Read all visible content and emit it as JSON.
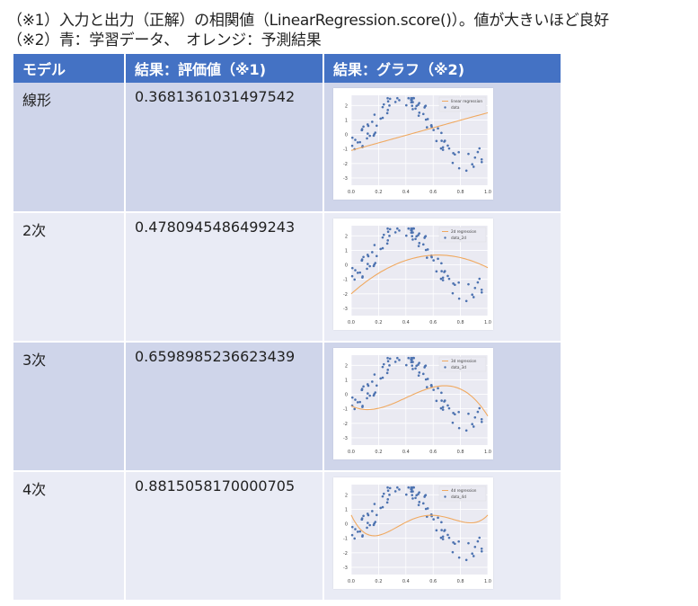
{
  "notes": {
    "line1": "（※1）入力と出力（正解）の相関値（LinearRegression.score()）。値が大きいほど良好",
    "line2": "（※2）青：学習データ、　オレンジ：予測結果"
  },
  "table": {
    "headers": [
      "モデル",
      "結果：評価値（※1)",
      "結果：グラフ（※2)"
    ],
    "rows": [
      {
        "model": "線形",
        "score": "0.3681361031497542",
        "legend_line": "linear regression",
        "legend_dots": "data"
      },
      {
        "model": "2次",
        "score": "0.4780945486499243",
        "legend_line": "2d regression",
        "legend_dots": "data_2d"
      },
      {
        "model": "3次",
        "score": "0.6598985236623439",
        "legend_line": "3d regression",
        "legend_dots": "data_3d"
      },
      {
        "model": "4次",
        "score": "0.8815058170000705",
        "legend_line": "4d regression",
        "legend_dots": "data_4d"
      }
    ]
  },
  "chart_data": [
    {
      "type": "scatter",
      "degree": 1,
      "xlim": [
        0,
        1
      ],
      "ylim": [
        -3.5,
        2.7
      ],
      "xticks": [
        "0.0",
        "0.2",
        "0.4",
        "0.6",
        "0.8",
        "1.0"
      ],
      "yticks": [
        "2",
        "1",
        "0",
        "-1",
        "-2",
        "-3"
      ],
      "legend": [
        "linear regression",
        "data"
      ],
      "legend_position": "top-right",
      "colors": {
        "data": "#4c72b0",
        "regression": "#f0a960",
        "background": "#eaeaf2"
      }
    },
    {
      "type": "scatter",
      "degree": 2,
      "xlim": [
        0,
        1
      ],
      "ylim": [
        -3.5,
        2.7
      ],
      "xticks": [
        "0.0",
        "0.2",
        "0.4",
        "0.6",
        "0.8",
        "1.0"
      ],
      "yticks": [
        "2",
        "1",
        "0",
        "-1",
        "-2",
        "-3"
      ],
      "legend": [
        "2d regression",
        "data_2d"
      ],
      "legend_position": "top-right"
    },
    {
      "type": "scatter",
      "degree": 3,
      "xlim": [
        0,
        1
      ],
      "ylim": [
        -3.5,
        2.7
      ],
      "xticks": [
        "0.0",
        "0.2",
        "0.4",
        "0.6",
        "0.8",
        "1.0"
      ],
      "yticks": [
        "2",
        "1",
        "0",
        "-1",
        "-2",
        "-3"
      ],
      "legend": [
        "3d regression",
        "data_3d"
      ],
      "legend_position": "top-right"
    },
    {
      "type": "scatter",
      "degree": 4,
      "xlim": [
        0,
        1
      ],
      "ylim": [
        -3.5,
        2.7
      ],
      "xticks": [
        "0.0",
        "0.2",
        "0.4",
        "0.6",
        "0.8",
        "1.0"
      ],
      "yticks": [
        "2",
        "1",
        "0",
        "-1",
        "-2",
        "-3"
      ],
      "legend": [
        "4d regression",
        "data_4d"
      ],
      "legend_position": "top-right"
    }
  ]
}
